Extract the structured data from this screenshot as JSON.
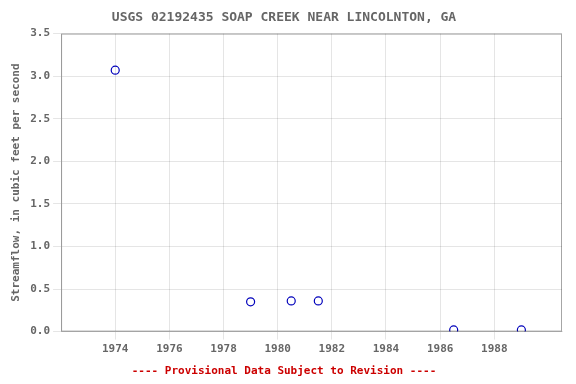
{
  "chart_data": {
    "type": "scatter",
    "title": "USGS 02192435 SOAP CREEK NEAR LINCOLNTON, GA",
    "ylabel": "Streamflow, in cubic feet per second",
    "x": [
      1974.0,
      1979.0,
      1980.5,
      1981.5,
      1986.5,
      1989.0
    ],
    "values": [
      3.07,
      0.35,
      0.36,
      0.36,
      0.02,
      0.02
    ],
    "color": "#0000bb",
    "marker": "open_circle",
    "xlim": [
      1972.0,
      1990.5
    ],
    "ylim": [
      0.0,
      3.5
    ],
    "xticks": [
      1974,
      1976,
      1978,
      1980,
      1982,
      1984,
      1986,
      1988
    ],
    "yticks": [
      {
        "value": 0.0,
        "label": "0.0"
      },
      0.5,
      {
        "value": 1.0,
        "label": "1.0"
      },
      1.5,
      {
        "value": 2.0,
        "label": "2.0"
      },
      2.5,
      {
        "value": 3.0,
        "label": "3.0"
      },
      3.5
    ],
    "grid": true,
    "annotations": [
      {
        "text": "---- Provisional Data Subject to Revision ----",
        "color": "#cc0000"
      }
    ]
  }
}
